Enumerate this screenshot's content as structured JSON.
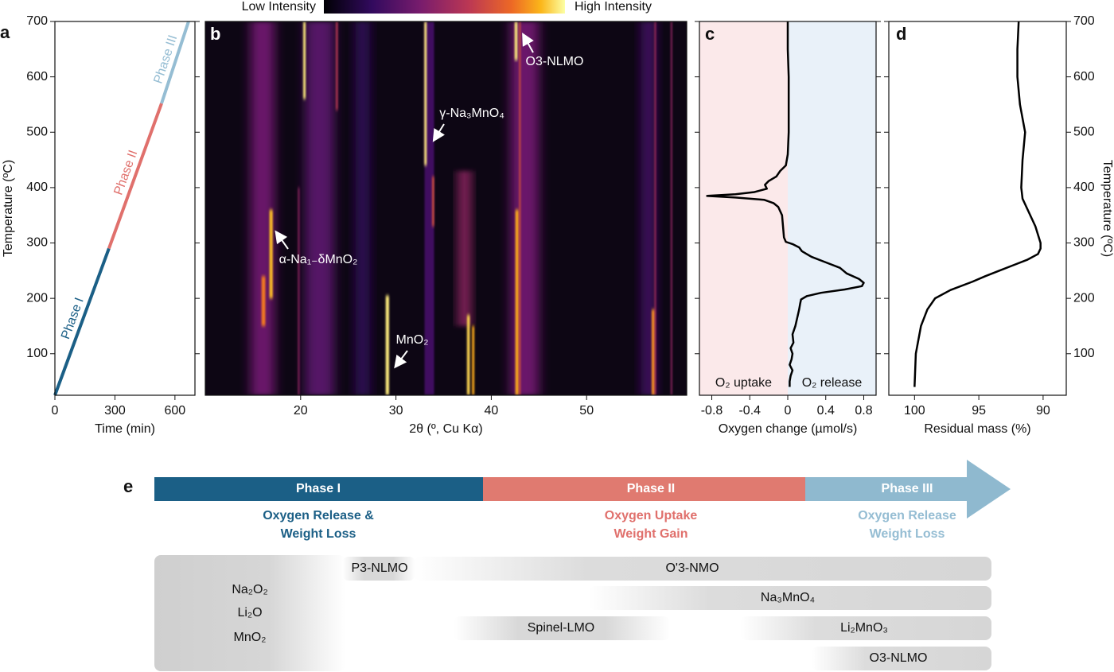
{
  "chart_data": [
    {
      "label": "a",
      "type": "line",
      "xlabel": "Time (min)",
      "ylabel": "Temperature (ºC)",
      "xlim": [
        0,
        700
      ],
      "xticks": [
        0,
        300,
        600
      ],
      "ylim": [
        25,
        700
      ],
      "yticks": [
        100,
        200,
        300,
        400,
        500,
        600,
        700
      ],
      "series": [
        {
          "name": "Phase I",
          "color": "#1b5f86",
          "x": [
            0,
            270
          ],
          "values": [
            25,
            290
          ]
        },
        {
          "name": "Phase II",
          "color": "#e0706c",
          "x": [
            270,
            533
          ],
          "values": [
            290,
            552
          ]
        },
        {
          "name": "Phase III",
          "color": "#95bdd3",
          "x": [
            533,
            668
          ],
          "values": [
            552,
            700
          ]
        }
      ]
    },
    {
      "label": "b",
      "type": "heatmap",
      "xlabel": "2θ (º, Cu Kα)",
      "colorbar": {
        "low_label": "Low Intensity",
        "high_label": "High Intensity"
      },
      "xlim": [
        10,
        60.5
      ],
      "xticks": [
        20,
        30,
        40,
        50
      ],
      "ylim": [
        25,
        700
      ],
      "streaks": [
        {
          "x": 16,
          "y": [
            25,
            700
          ],
          "width": 2.5,
          "intensity": 0.3
        },
        {
          "x": 22,
          "y": [
            25,
            700
          ],
          "width": 3,
          "intensity": 0.25
        },
        {
          "x": 26.5,
          "y": [
            25,
            700
          ],
          "width": 1.5,
          "intensity": 0.15
        },
        {
          "x": 37.2,
          "y": [
            150,
            430
          ],
          "width": 1.2,
          "intensity": 0.4
        },
        {
          "x": 43.5,
          "y": [
            25,
            700
          ],
          "width": 3,
          "intensity": 0.3
        },
        {
          "x": 33.5,
          "y": [
            25,
            700
          ],
          "width": 1,
          "intensity": 0.2
        },
        {
          "x": 56.5,
          "y": [
            25,
            700
          ],
          "width": 1.5,
          "intensity": 0.2
        },
        {
          "x": 19.8,
          "y": [
            25,
            400
          ],
          "width": 0.15,
          "intensity": 0.4
        },
        {
          "x": 16.9,
          "y": [
            200,
            360
          ],
          "width": 0.35,
          "intensity": 0.85
        },
        {
          "x": 16.1,
          "y": [
            150,
            240
          ],
          "width": 0.4,
          "intensity": 0.7
        },
        {
          "x": 20.4,
          "y": [
            560,
            700
          ],
          "width": 0.25,
          "intensity": 0.95
        },
        {
          "x": 23.8,
          "y": [
            540,
            700
          ],
          "width": 0.2,
          "intensity": 0.5
        },
        {
          "x": 29.1,
          "y": [
            25,
            205
          ],
          "width": 0.35,
          "intensity": 0.95
        },
        {
          "x": 33.1,
          "y": [
            440,
            700
          ],
          "width": 0.25,
          "intensity": 0.95
        },
        {
          "x": 33.9,
          "y": [
            330,
            420
          ],
          "width": 0.2,
          "intensity": 0.6
        },
        {
          "x": 37.6,
          "y": [
            25,
            170
          ],
          "width": 0.3,
          "intensity": 0.9
        },
        {
          "x": 38.1,
          "y": [
            25,
            150
          ],
          "width": 0.25,
          "intensity": 0.8
        },
        {
          "x": 42.7,
          "y": [
            25,
            360
          ],
          "width": 0.35,
          "intensity": 0.8
        },
        {
          "x": 42.6,
          "y": [
            630,
            700
          ],
          "width": 0.3,
          "intensity": 0.95
        },
        {
          "x": 43.0,
          "y": [
            25,
            700
          ],
          "width": 0.15,
          "intensity": 0.6
        },
        {
          "x": 57.0,
          "y": [
            25,
            180
          ],
          "width": 0.35,
          "intensity": 0.75
        },
        {
          "x": 57.2,
          "y": [
            25,
            700
          ],
          "width": 0.15,
          "intensity": 0.45
        },
        {
          "x": 58.9,
          "y": [
            25,
            700
          ],
          "width": 0.15,
          "intensity": 0.4
        }
      ],
      "annotations": [
        "O3-NLMO",
        "γ-Na₃MnO₄",
        "α-Na₁₋δMnO₂",
        "MnO₂"
      ]
    },
    {
      "label": "c",
      "type": "line",
      "orientation": "horizontal",
      "xlabel": "Oxygen change (µmol/s)",
      "xlim": [
        -0.93,
        0.93
      ],
      "xticks": [
        -0.8,
        -0.4,
        0,
        0.4,
        0.8
      ],
      "ylim": [
        25,
        700
      ],
      "yticks": [
        100,
        200,
        300,
        400,
        500,
        600,
        700
      ],
      "show_ytick_labels": false,
      "color": "#000000",
      "regions": [
        {
          "label": "O₂ uptake",
          "color": "#fbe9ea"
        },
        {
          "label": "O₂ release",
          "color": "#e9f1f9"
        }
      ],
      "y": [
        700,
        650,
        600,
        550,
        500,
        460,
        440,
        430,
        420,
        412,
        405,
        398,
        392,
        388,
        385,
        382,
        378,
        372,
        365,
        350,
        330,
        310,
        302,
        298,
        292,
        285,
        275,
        265,
        255,
        245,
        235,
        228,
        222,
        216,
        210,
        204,
        198,
        190,
        180,
        165,
        150,
        135,
        120,
        110,
        100,
        90,
        80,
        70,
        60,
        50,
        40
      ],
      "values": [
        0,
        0,
        0.01,
        0.01,
        0.01,
        0,
        -0.02,
        -0.08,
        -0.12,
        -0.2,
        -0.24,
        -0.22,
        -0.35,
        -0.55,
        -0.85,
        -0.55,
        -0.25,
        -0.15,
        -0.1,
        -0.06,
        -0.05,
        -0.04,
        -0.02,
        0.05,
        0.12,
        0.15,
        0.25,
        0.4,
        0.55,
        0.62,
        0.75,
        0.8,
        0.78,
        0.6,
        0.35,
        0.2,
        0.14,
        0.13,
        0.12,
        0.1,
        0.08,
        0.05,
        0.06,
        0.03,
        0.05,
        0.04,
        0.02,
        0.05,
        0.03,
        0.02,
        0.02
      ]
    },
    {
      "label": "d",
      "type": "line",
      "orientation": "horizontal",
      "xlabel": "Residual mass (%)",
      "ylabel": "Temperature (ºC)",
      "y_axis_side": "right",
      "xlim": [
        102,
        88.2
      ],
      "xticks": [
        100,
        95,
        90
      ],
      "ylim": [
        25,
        700
      ],
      "yticks": [
        100,
        200,
        300,
        400,
        500,
        600,
        700
      ],
      "color": "#000000",
      "y": [
        700,
        650,
        600,
        550,
        500,
        450,
        400,
        380,
        360,
        330,
        300,
        290,
        280,
        270,
        260,
        250,
        240,
        230,
        215,
        200,
        180,
        150,
        100,
        40
      ],
      "values": [
        91.9,
        92.0,
        92.0,
        91.8,
        91.4,
        91.6,
        91.7,
        91.6,
        91.2,
        90.6,
        90.2,
        90.2,
        90.4,
        91.2,
        92.3,
        93.4,
        94.5,
        95.5,
        97.2,
        98.4,
        99.0,
        99.5,
        99.9,
        100
      ]
    }
  ],
  "diagram": {
    "label": "e",
    "phases": [
      {
        "name": "Phase I",
        "description": [
          "Oxygen Release &",
          "Weight Loss"
        ]
      },
      {
        "name": "Phase II",
        "description": [
          "Oxygen Uptake",
          "Weight Gain"
        ]
      },
      {
        "name": "Phase III",
        "description": [
          "Oxygen Release",
          "Weight Loss"
        ]
      }
    ],
    "species": [
      "Na₂O₂",
      "Li₂O",
      "MnO₂",
      "P3-NLMO",
      "O'3-NMO",
      "Na₃MnO₄",
      "Spinel-LMO",
      "Li₂MnO₃",
      "O3-NLMO"
    ]
  }
}
